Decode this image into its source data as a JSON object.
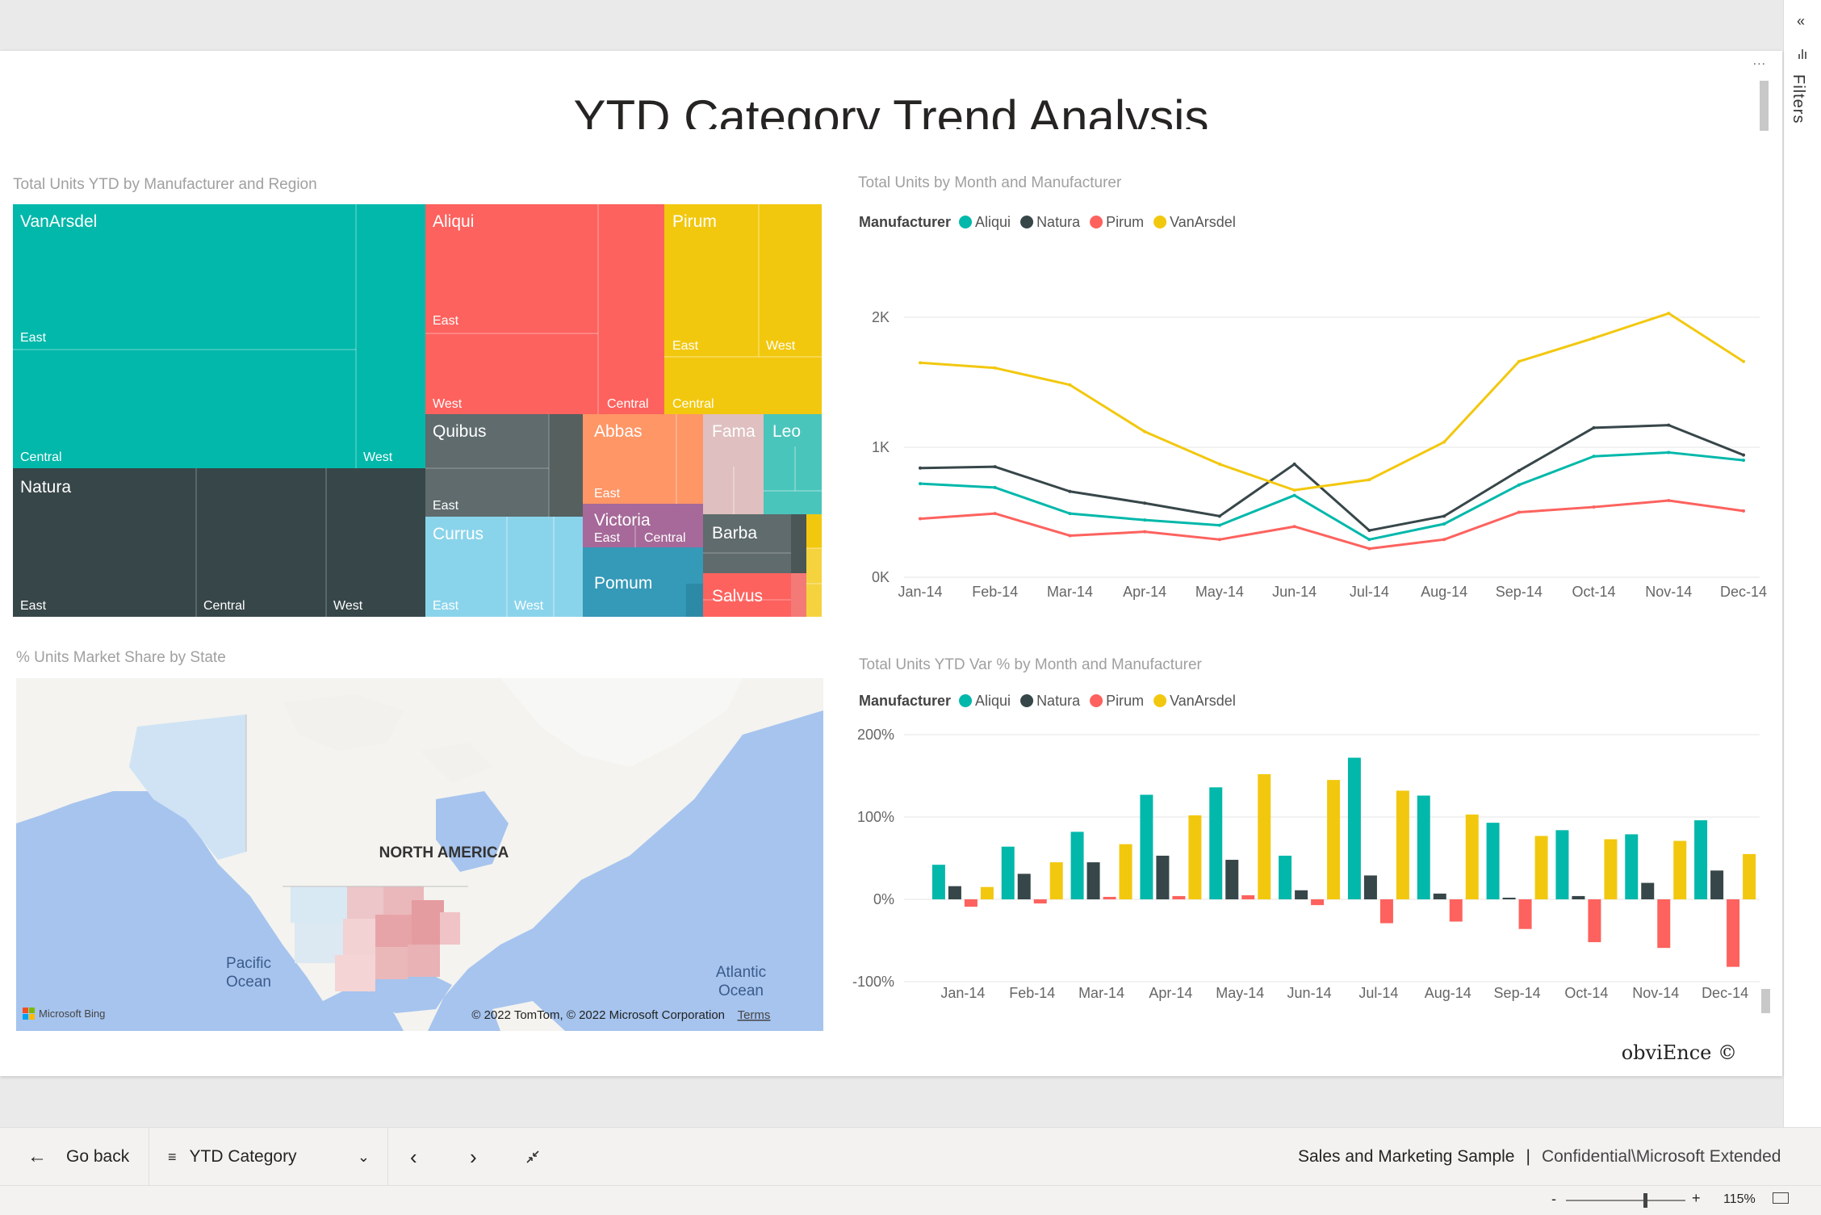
{
  "report": {
    "title": "YTD Category Trend Analysis",
    "watermark": "obviEnce ©"
  },
  "filters_pane": {
    "label": "Filters",
    "collapse_icon": "double-chevron-left-icon"
  },
  "visual_menu": "...",
  "treemap": {
    "title": "Total Units YTD by Manufacturer and Region",
    "manufacturers": [
      {
        "name": "VanArsdel",
        "color": "#01B8AA",
        "regions": [
          "East",
          "Central",
          "West"
        ]
      },
      {
        "name": "Natura",
        "color": "#374649",
        "regions": [
          "East",
          "Central",
          "West"
        ]
      },
      {
        "name": "Aliqui",
        "color": "#FD625E",
        "regions": [
          "East",
          "West",
          "Central"
        ]
      },
      {
        "name": "Pirum",
        "color": "#F2C80F",
        "regions": [
          "East",
          "West",
          "Central"
        ]
      },
      {
        "name": "Quibus",
        "color": "#5F6B6D",
        "regions": [
          "East"
        ]
      },
      {
        "name": "Abbas",
        "color": "#FE9666",
        "regions": [
          "East"
        ]
      },
      {
        "name": "Fama",
        "color": "#DFBFBF",
        "regions": []
      },
      {
        "name": "Leo",
        "color": "#4AC5BB",
        "regions": []
      },
      {
        "name": "Currus",
        "color": "#8AD4EB",
        "regions": [
          "East",
          "West"
        ]
      },
      {
        "name": "Victoria",
        "color": "#A66999",
        "regions": [
          "East",
          "Central"
        ]
      },
      {
        "name": "Barba",
        "color": "#5F6B6D",
        "regions": []
      },
      {
        "name": "Pomum",
        "color": "#3599B8",
        "regions": []
      },
      {
        "name": "Salvus",
        "color": "#FD625E",
        "regions": []
      }
    ]
  },
  "map": {
    "title": "% Units Market Share by State",
    "continent_label": "NORTH AMERICA",
    "pacific_label": [
      "Pacific",
      "Ocean"
    ],
    "atlantic_label": [
      "Atlantic",
      "Ocean"
    ],
    "bing_label": "Microsoft Bing",
    "copyright": "© 2022 TomTom, © 2022 Microsoft Corporation",
    "terms": "Terms"
  },
  "chart_data": [
    {
      "type": "line",
      "title": "Total Units by Month and Manufacturer",
      "legend_title": "Manufacturer",
      "legend_position": "top-left",
      "x": [
        "Jan-14",
        "Feb-14",
        "Mar-14",
        "Apr-14",
        "May-14",
        "Jun-14",
        "Jul-14",
        "Aug-14",
        "Sep-14",
        "Oct-14",
        "Nov-14",
        "Dec-14"
      ],
      "y_ticks": [
        "0K",
        "1K",
        "2K"
      ],
      "ylim": [
        0,
        2000
      ],
      "grid": true,
      "series": [
        {
          "name": "Aliqui",
          "color": "#01B8AA",
          "values": [
            720,
            690,
            490,
            440,
            400,
            630,
            290,
            410,
            710,
            930,
            960,
            900
          ]
        },
        {
          "name": "Natura",
          "color": "#374649",
          "values": [
            840,
            850,
            660,
            570,
            470,
            870,
            360,
            470,
            820,
            1150,
            1170,
            940
          ]
        },
        {
          "name": "Pirum",
          "color": "#FD625E",
          "values": [
            450,
            490,
            320,
            350,
            290,
            390,
            220,
            290,
            500,
            540,
            590,
            510
          ]
        },
        {
          "name": "VanArsdel",
          "color": "#F2C80F",
          "values": [
            1650,
            1610,
            1480,
            1120,
            870,
            670,
            750,
            1040,
            1660,
            1840,
            2030,
            1660
          ]
        }
      ]
    },
    {
      "type": "bar",
      "title": "Total Units YTD Var % by Month and Manufacturer",
      "legend_title": "Manufacturer",
      "legend_position": "top-left",
      "categories": [
        "Jan-14",
        "Feb-14",
        "Mar-14",
        "Apr-14",
        "May-14",
        "Jun-14",
        "Jul-14",
        "Aug-14",
        "Sep-14",
        "Oct-14",
        "Nov-14",
        "Dec-14"
      ],
      "y_ticks": [
        "200%",
        "100%",
        "0%",
        "-100%"
      ],
      "ylim": [
        -100,
        200
      ],
      "grid": true,
      "series": [
        {
          "name": "Aliqui",
          "color": "#01B8AA",
          "values": [
            42,
            64,
            82,
            127,
            136,
            53,
            172,
            126,
            93,
            84,
            79,
            96
          ]
        },
        {
          "name": "Natura",
          "color": "#374649",
          "values": [
            16,
            31,
            45,
            53,
            48,
            11,
            29,
            7,
            2,
            4,
            20,
            35
          ]
        },
        {
          "name": "Pirum",
          "color": "#FD625E",
          "values": [
            -9,
            -5,
            3,
            4,
            5,
            -7,
            -29,
            -27,
            -36,
            -52,
            -59,
            -82
          ]
        },
        {
          "name": "VanArsdel",
          "color": "#F2C80F",
          "values": [
            15,
            45,
            67,
            102,
            152,
            145,
            132,
            103,
            77,
            73,
            71,
            55
          ]
        }
      ]
    }
  ],
  "footer": {
    "back_label": "Go back",
    "page_label": "YTD Category",
    "report_name": "Sales and Marketing Sample",
    "separator": "|",
    "sensitivity": "Confidential\\Microsoft Extended"
  },
  "status": {
    "zoom_minus": "-",
    "zoom_plus": "+",
    "zoom": "115%",
    "zoom_level_pct": 115
  }
}
